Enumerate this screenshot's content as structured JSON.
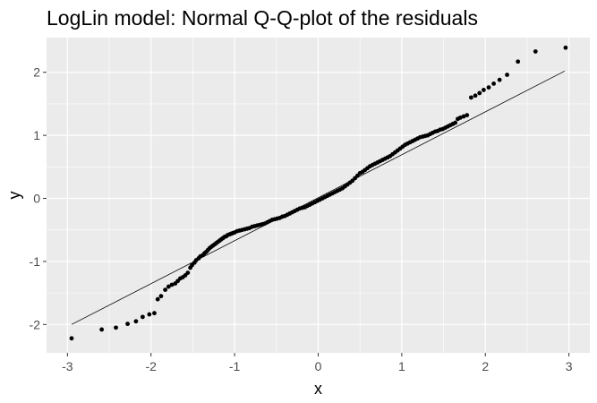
{
  "chart_data": {
    "type": "scatter",
    "title": "LogLin model: Normal Q-Q-plot of the residuals",
    "xlabel": "x",
    "ylabel": "y",
    "xlim": [
      -3.25,
      3.25
    ],
    "ylim": [
      -2.45,
      2.55
    ],
    "x_ticks": [
      -3,
      -2,
      -1,
      0,
      1,
      2,
      3
    ],
    "y_ticks": [
      -2,
      -1,
      0,
      1,
      2
    ],
    "grid": true,
    "legend": "none",
    "background_color": "#ebebeb",
    "grid_major_color": "#ffffff",
    "point_color": "#000000",
    "reference_line": {
      "x": [
        -2.95,
        2.95
      ],
      "y": [
        -2.0,
        2.02
      ],
      "color": "#000000"
    },
    "points": {
      "x": [
        -2.95,
        -2.59,
        -2.42,
        -2.28,
        -2.18,
        -2.1,
        -2.02,
        -1.96,
        -1.92,
        -1.88,
        -1.83,
        -1.79,
        -1.75,
        -1.71,
        -1.68,
        -1.65,
        -1.62,
        -1.59,
        -1.56,
        -1.53,
        -1.51,
        -1.48,
        -1.46,
        -1.43,
        -1.41,
        -1.38,
        -1.36,
        -1.34,
        -1.32,
        -1.3,
        -1.28,
        -1.26,
        -1.24,
        -1.22,
        -1.2,
        -1.18,
        -1.16,
        -1.14,
        -1.12,
        -1.1,
        -1.08,
        -1.06,
        -1.04,
        -1.02,
        -1.0,
        -0.97,
        -0.94,
        -0.91,
        -0.88,
        -0.85,
        -0.82,
        -0.79,
        -0.76,
        -0.73,
        -0.7,
        -0.67,
        -0.64,
        -0.61,
        -0.58,
        -0.55,
        -0.52,
        -0.49,
        -0.46,
        -0.43,
        -0.4,
        -0.37,
        -0.34,
        -0.31,
        -0.28,
        -0.25,
        -0.22,
        -0.19,
        -0.16,
        -0.13,
        -0.1,
        -0.07,
        -0.04,
        -0.01,
        0.02,
        0.05,
        0.08,
        0.11,
        0.14,
        0.17,
        0.2,
        0.23,
        0.26,
        0.29,
        0.32,
        0.35,
        0.38,
        0.41,
        0.44,
        0.47,
        0.5,
        0.53,
        0.56,
        0.59,
        0.62,
        0.65,
        0.68,
        0.71,
        0.74,
        0.77,
        0.8,
        0.83,
        0.86,
        0.89,
        0.92,
        0.95,
        0.98,
        1.01,
        1.04,
        1.07,
        1.1,
        1.13,
        1.16,
        1.19,
        1.22,
        1.25,
        1.28,
        1.31,
        1.34,
        1.37,
        1.4,
        1.43,
        1.46,
        1.49,
        1.52,
        1.55,
        1.58,
        1.61,
        1.64,
        1.67,
        1.7,
        1.74,
        1.78,
        1.83,
        1.88,
        1.93,
        1.98,
        2.04,
        2.1,
        2.17,
        2.26,
        2.39,
        2.6,
        2.96
      ],
      "y": [
        -2.22,
        -2.08,
        -2.05,
        -1.99,
        -1.95,
        -1.88,
        -1.84,
        -1.82,
        -1.6,
        -1.55,
        -1.45,
        -1.4,
        -1.37,
        -1.35,
        -1.31,
        -1.27,
        -1.25,
        -1.22,
        -1.18,
        -1.1,
        -1.06,
        -1.02,
        -0.98,
        -0.95,
        -0.92,
        -0.9,
        -0.87,
        -0.85,
        -0.82,
        -0.79,
        -0.77,
        -0.75,
        -0.73,
        -0.71,
        -0.69,
        -0.67,
        -0.65,
        -0.63,
        -0.61,
        -0.6,
        -0.58,
        -0.57,
        -0.56,
        -0.55,
        -0.54,
        -0.52,
        -0.51,
        -0.5,
        -0.49,
        -0.48,
        -0.47,
        -0.45,
        -0.44,
        -0.43,
        -0.42,
        -0.41,
        -0.4,
        -0.38,
        -0.36,
        -0.34,
        -0.33,
        -0.32,
        -0.31,
        -0.29,
        -0.28,
        -0.26,
        -0.24,
        -0.22,
        -0.2,
        -0.18,
        -0.16,
        -0.15,
        -0.14,
        -0.12,
        -0.1,
        -0.08,
        -0.06,
        -0.04,
        -0.02,
        0.0,
        0.02,
        0.04,
        0.06,
        0.08,
        0.1,
        0.12,
        0.14,
        0.16,
        0.19,
        0.22,
        0.25,
        0.28,
        0.32,
        0.36,
        0.4,
        0.42,
        0.45,
        0.48,
        0.51,
        0.53,
        0.55,
        0.57,
        0.59,
        0.61,
        0.63,
        0.65,
        0.67,
        0.7,
        0.73,
        0.76,
        0.79,
        0.82,
        0.85,
        0.87,
        0.89,
        0.91,
        0.93,
        0.95,
        0.97,
        0.98,
        0.99,
        1.0,
        1.02,
        1.04,
        1.06,
        1.07,
        1.09,
        1.1,
        1.12,
        1.14,
        1.16,
        1.18,
        1.2,
        1.26,
        1.28,
        1.3,
        1.32,
        1.6,
        1.63,
        1.67,
        1.72,
        1.76,
        1.82,
        1.88,
        1.96,
        2.17,
        2.33,
        2.39
      ]
    }
  }
}
